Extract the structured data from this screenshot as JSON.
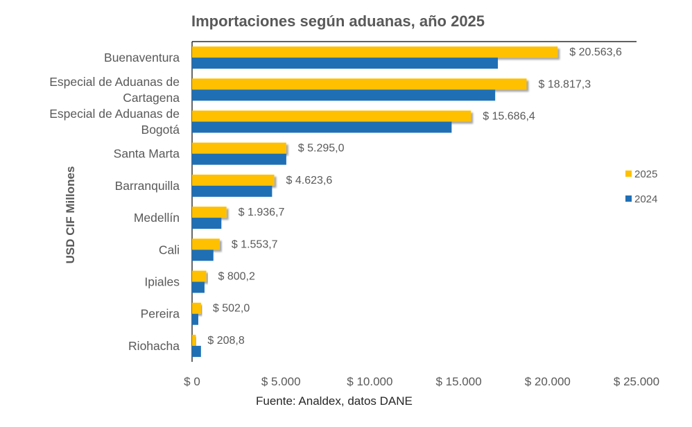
{
  "chart_data": {
    "type": "bar",
    "orientation": "horizontal",
    "title": "Importaciones según aduanas, año 2025",
    "ylabel": "USD CIF Millones",
    "xlabel": "",
    "source": "Fuente: Analdex, datos DANE",
    "categories": [
      [
        "Buenaventura"
      ],
      [
        "Especial de Aduanas de",
        "Cartagena"
      ],
      [
        "Especial de Aduanas de",
        "Bogotá"
      ],
      [
        "Santa Marta"
      ],
      [
        "Barranquilla"
      ],
      [
        "Medellín"
      ],
      [
        "Cali"
      ],
      [
        "Ipiales"
      ],
      [
        "Pereira"
      ],
      [
        "Riohacha"
      ]
    ],
    "series": [
      {
        "name": "2025",
        "color": "#FFC000",
        "values": [
          20563.6,
          18817.3,
          15686.4,
          5295.0,
          4623.6,
          1936.7,
          1553.7,
          800.2,
          502.0,
          208.8
        ],
        "labels": [
          "$ 20.563,6",
          "$ 18.817,3",
          "$ 15.686,4",
          "$ 5.295,0",
          "$ 4.623,6",
          "$ 1.936,7",
          "$ 1.553,7",
          "$ 800,2",
          "$ 502,0",
          "$ 208,8"
        ]
      },
      {
        "name": "2024",
        "color": "#1F6FB5",
        "values": [
          17200,
          17050,
          14600,
          5300,
          4500,
          1650,
          1200,
          700,
          350,
          500
        ]
      }
    ],
    "xlim": [
      0,
      25000
    ],
    "xticks": [
      0,
      5000,
      10000,
      15000,
      20000,
      25000
    ],
    "xtick_labels": [
      "$ 0",
      "$ 5.000",
      "$ 10.000",
      "$ 15.000",
      "$ 20.000",
      "$ 25.000"
    ],
    "legend_position": "right",
    "grid": false
  }
}
